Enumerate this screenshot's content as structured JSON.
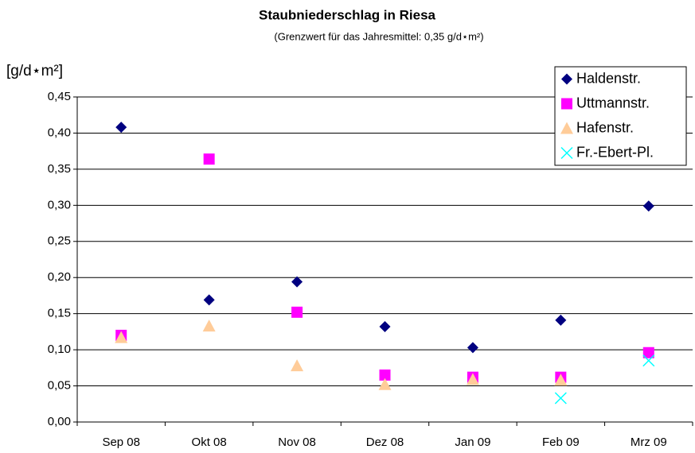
{
  "chart_data": {
    "type": "scatter",
    "title": "Staubniederschlag in Riesa",
    "subtitle": "(Grenzwert für das Jahresmittel: 0,35 g/d⋆m²)",
    "y_label": "[g/d⋆m²]",
    "categories": [
      "Sep 08",
      "Okt 08",
      "Nov 08",
      "Dez 08",
      "Jan 09",
      "Feb 09",
      "Mrz 09"
    ],
    "series": [
      {
        "name": "Haldenstr.",
        "color": "#000080",
        "marker": "diamond",
        "values": [
          0.408,
          0.169,
          0.194,
          0.132,
          0.103,
          0.141,
          0.299
        ]
      },
      {
        "name": "Uttmannstr.",
        "color": "#ff00ff",
        "marker": "square",
        "values": [
          0.12,
          0.364,
          0.152,
          0.065,
          0.062,
          0.062,
          0.096
        ]
      },
      {
        "name": "Hafenstr.",
        "color": "#ffcc99",
        "marker": "triangle",
        "values": [
          0.117,
          0.133,
          0.078,
          0.052,
          0.059,
          0.058,
          null
        ]
      },
      {
        "name": "Fr.-Ebert-Pl.",
        "color": "#00ffff",
        "marker": "x",
        "values": [
          null,
          null,
          null,
          null,
          null,
          0.033,
          0.085
        ]
      }
    ],
    "ylim": [
      0,
      0.45
    ],
    "yticks": [
      {
        "value": 0,
        "label": "0,00"
      },
      {
        "value": 0.05,
        "label": "0,05"
      },
      {
        "value": 0.1,
        "label": "0,10"
      },
      {
        "value": 0.15,
        "label": "0,15"
      },
      {
        "value": 0.2,
        "label": "0,20"
      },
      {
        "value": 0.25,
        "label": "0,25"
      },
      {
        "value": 0.3,
        "label": "0,30"
      },
      {
        "value": 0.35,
        "label": "0,35"
      },
      {
        "value": 0.4,
        "label": "0,40"
      },
      {
        "value": 0.45,
        "label": "0,45"
      }
    ],
    "grid": true,
    "legend": "top-right"
  }
}
